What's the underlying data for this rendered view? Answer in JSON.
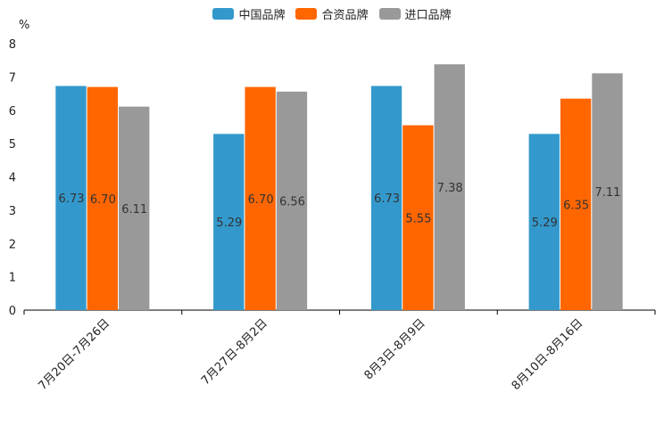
{
  "chart_data": {
    "type": "bar",
    "title": "",
    "unit_label": "%",
    "xlabel": "",
    "ylabel": "%",
    "ylim": [
      0,
      8
    ],
    "yticks": [
      0,
      1,
      2,
      3,
      4,
      5,
      6,
      7,
      8
    ],
    "categories": [
      "7月20日-7月26日",
      "7月27日-8月2日",
      "8月3日-8月9日",
      "8月10日-8月16日"
    ],
    "series": [
      {
        "name": "中国品牌",
        "color": "#3399cc",
        "values": [
          6.73,
          5.29,
          6.73,
          5.29
        ],
        "labels": [
          "6.73",
          "5.29",
          "6.73",
          "5.29"
        ]
      },
      {
        "name": "合资品牌",
        "color": "#ff6600",
        "values": [
          6.7,
          6.7,
          5.55,
          6.35
        ],
        "labels": [
          "6.70",
          "6.70",
          "5.55",
          "6.35"
        ]
      },
      {
        "name": "进口品牌",
        "color": "#999999",
        "values": [
          6.11,
          6.56,
          7.38,
          7.11
        ],
        "labels": [
          "6.11",
          "6.56",
          "7.38",
          "7.11"
        ]
      }
    ],
    "legend_position": "top-center",
    "grid": false
  }
}
